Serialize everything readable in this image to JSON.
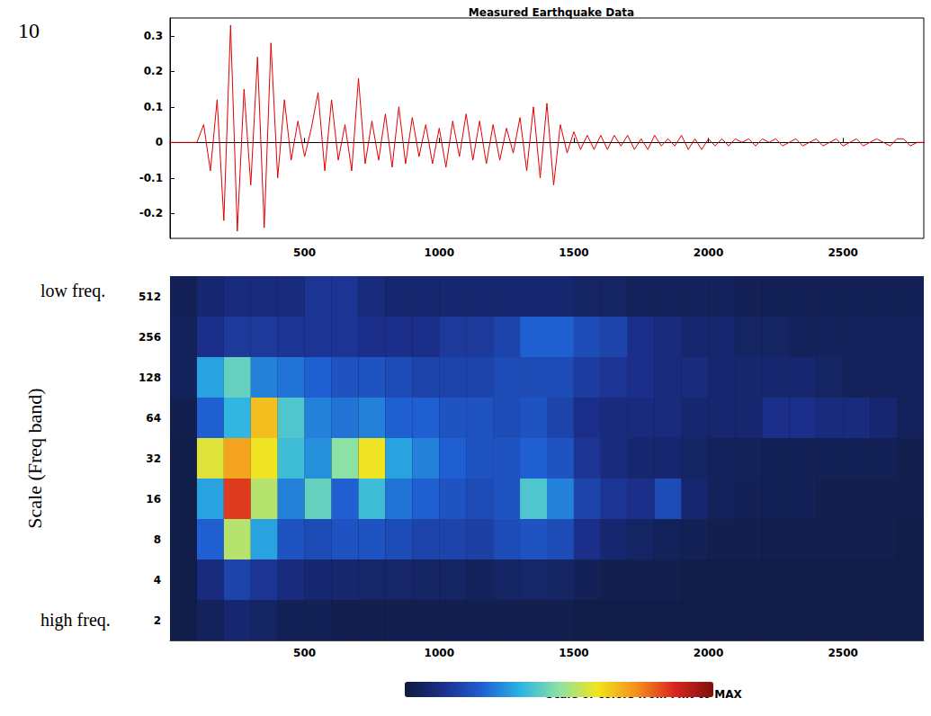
{
  "panel": "10",
  "chart_data": [
    {
      "type": "line",
      "title": "Measured Earthquake Data",
      "color": "#e00000",
      "grid": false,
      "xlim": [
        0,
        2800
      ],
      "xticks": [
        500,
        1000,
        1500,
        2000,
        2500
      ],
      "ylim": [
        -0.27,
        0.35
      ],
      "yticks": [
        -0.2,
        -0.1,
        0,
        0.1,
        0.2,
        0.3
      ],
      "x": [
        0,
        25,
        50,
        75,
        100,
        125,
        150,
        175,
        200,
        225,
        250,
        275,
        300,
        325,
        350,
        375,
        400,
        425,
        450,
        475,
        500,
        525,
        550,
        575,
        600,
        625,
        650,
        675,
        700,
        725,
        750,
        775,
        800,
        825,
        850,
        875,
        900,
        925,
        950,
        975,
        1000,
        1025,
        1050,
        1075,
        1100,
        1125,
        1150,
        1175,
        1200,
        1225,
        1250,
        1275,
        1300,
        1325,
        1350,
        1375,
        1400,
        1425,
        1450,
        1475,
        1500,
        1525,
        1550,
        1575,
        1600,
        1625,
        1650,
        1675,
        1700,
        1725,
        1750,
        1775,
        1800,
        1825,
        1850,
        1875,
        1900,
        1925,
        1950,
        1975,
        2000,
        2025,
        2050,
        2075,
        2100,
        2125,
        2150,
        2175,
        2200,
        2225,
        2250,
        2275,
        2300,
        2325,
        2350,
        2375,
        2400,
        2425,
        2450,
        2475,
        2500,
        2525,
        2550,
        2575,
        2600,
        2625,
        2650,
        2675,
        2700,
        2725,
        2750,
        2775,
        2800
      ],
      "values": [
        0,
        0,
        0,
        0,
        0,
        0.05,
        -0.08,
        0.12,
        -0.22,
        0.33,
        -0.25,
        0.15,
        -0.12,
        0.24,
        -0.24,
        0.28,
        -0.1,
        0.12,
        -0.05,
        0.06,
        -0.04,
        0.04,
        0.14,
        -0.08,
        0.12,
        -0.05,
        0.05,
        -0.08,
        0.18,
        -0.06,
        0.06,
        -0.05,
        0.08,
        -0.07,
        0.1,
        -0.06,
        0.07,
        -0.04,
        0.05,
        -0.06,
        0.04,
        -0.07,
        0.06,
        -0.04,
        0.08,
        -0.05,
        0.06,
        -0.06,
        0.05,
        -0.05,
        0.04,
        -0.03,
        0.07,
        -0.08,
        0.1,
        -0.1,
        0.11,
        -0.12,
        0.05,
        -0.03,
        0.03,
        -0.02,
        0.02,
        -0.02,
        0.02,
        -0.02,
        0.02,
        -0.01,
        0.02,
        -0.02,
        0.01,
        -0.02,
        0.02,
        -0.01,
        0.01,
        -0.01,
        0.02,
        -0.02,
        0.01,
        -0.02,
        0.01,
        -0.01,
        0.01,
        -0.01,
        0.01,
        0,
        0.01,
        -0.01,
        0.01,
        0,
        0.01,
        -0.01,
        0,
        0.01,
        -0.01,
        0,
        0.01,
        -0.01,
        0,
        0.01,
        -0.01,
        0,
        0.01,
        -0.01,
        0,
        0.01,
        0,
        -0.01,
        0.01,
        0.01,
        -0.01,
        0,
        0
      ]
    },
    {
      "type": "heatmap",
      "y_label": "Scale (Freq band)",
      "annotations": [
        "low freq.",
        "high freq."
      ],
      "xlim": [
        0,
        2800
      ],
      "xticks": [
        500,
        1000,
        1500,
        2000,
        2500
      ],
      "time_bins": [
        0,
        100,
        200,
        300,
        400,
        500,
        600,
        700,
        800,
        900,
        1000,
        1100,
        1200,
        1300,
        1400,
        1500,
        1600,
        1700,
        1800,
        1900,
        2000,
        2100,
        2200,
        2300,
        2400,
        2500,
        2600,
        2700,
        2800
      ],
      "scales": [
        2,
        4,
        8,
        16,
        32,
        64,
        128,
        256,
        512
      ],
      "cells": [
        [
          0.02,
          0.05,
          0.08,
          0.06,
          0.04,
          0.04,
          0.03,
          0.03,
          0.03,
          0.03,
          0.03,
          0.03,
          0.03,
          0.03,
          0.03,
          0.02,
          0.02,
          0.02,
          0.02,
          0.02,
          0.02,
          0.02,
          0.02,
          0.02,
          0.02,
          0.02,
          0.02,
          0.02
        ],
        [
          0.02,
          0.1,
          0.18,
          0.14,
          0.1,
          0.08,
          0.08,
          0.07,
          0.07,
          0.06,
          0.06,
          0.05,
          0.06,
          0.07,
          0.06,
          0.04,
          0.03,
          0.03,
          0.03,
          0.02,
          0.02,
          0.02,
          0.02,
          0.02,
          0.02,
          0.02,
          0.02,
          0.02
        ],
        [
          0.02,
          0.25,
          0.55,
          0.35,
          0.22,
          0.2,
          0.22,
          0.22,
          0.2,
          0.18,
          0.18,
          0.17,
          0.2,
          0.22,
          0.2,
          0.12,
          0.08,
          0.06,
          0.05,
          0.04,
          0.03,
          0.03,
          0.03,
          0.03,
          0.03,
          0.03,
          0.03,
          0.02
        ],
        [
          0.02,
          0.35,
          0.85,
          0.55,
          0.3,
          0.45,
          0.25,
          0.4,
          0.28,
          0.25,
          0.22,
          0.2,
          0.22,
          0.42,
          0.3,
          0.18,
          0.14,
          0.12,
          0.2,
          0.08,
          0.05,
          0.04,
          0.04,
          0.04,
          0.03,
          0.03,
          0.03,
          0.03
        ],
        [
          0.02,
          0.6,
          0.72,
          0.62,
          0.4,
          0.32,
          0.5,
          0.62,
          0.35,
          0.3,
          0.25,
          0.22,
          0.22,
          0.25,
          0.22,
          0.14,
          0.1,
          0.08,
          0.08,
          0.06,
          0.05,
          0.05,
          0.04,
          0.04,
          0.04,
          0.04,
          0.04,
          0.03
        ],
        [
          0.03,
          0.25,
          0.38,
          0.68,
          0.42,
          0.3,
          0.28,
          0.3,
          0.25,
          0.25,
          0.22,
          0.22,
          0.2,
          0.22,
          0.18,
          0.12,
          0.1,
          0.1,
          0.1,
          0.08,
          0.08,
          0.08,
          0.12,
          0.12,
          0.1,
          0.1,
          0.08,
          0.05
        ],
        [
          0.05,
          0.35,
          0.45,
          0.3,
          0.28,
          0.25,
          0.22,
          0.22,
          0.2,
          0.18,
          0.18,
          0.18,
          0.2,
          0.2,
          0.2,
          0.16,
          0.14,
          0.12,
          0.1,
          0.1,
          0.08,
          0.08,
          0.08,
          0.08,
          0.06,
          0.05,
          0.05,
          0.05
        ],
        [
          0.05,
          0.12,
          0.15,
          0.15,
          0.14,
          0.14,
          0.14,
          0.12,
          0.12,
          0.12,
          0.15,
          0.15,
          0.18,
          0.25,
          0.25,
          0.2,
          0.18,
          0.12,
          0.1,
          0.08,
          0.08,
          0.06,
          0.06,
          0.05,
          0.05,
          0.05,
          0.05,
          0.05
        ],
        [
          0.04,
          0.08,
          0.1,
          0.1,
          0.1,
          0.14,
          0.14,
          0.1,
          0.08,
          0.08,
          0.08,
          0.08,
          0.08,
          0.08,
          0.08,
          0.06,
          0.06,
          0.05,
          0.05,
          0.05,
          0.05,
          0.04,
          0.04,
          0.04,
          0.04,
          0.04,
          0.04,
          0.04
        ]
      ],
      "colorbar": {
        "label": "Scale of colors from MIN to MAX",
        "range": [
          0,
          1
        ]
      }
    }
  ]
}
